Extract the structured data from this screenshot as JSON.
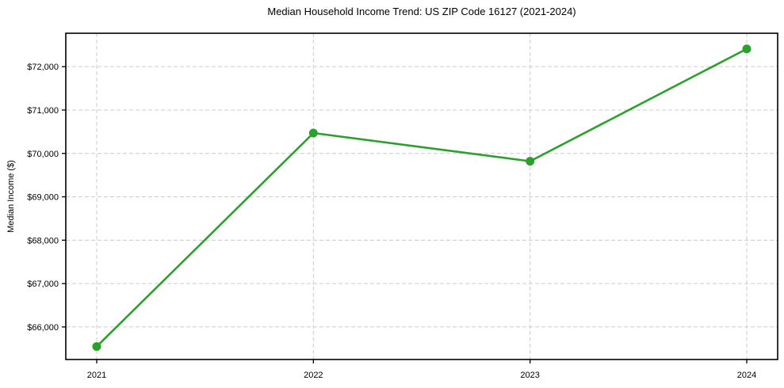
{
  "chart_data": {
    "type": "line",
    "title": "Median Household Income Trend: US ZIP Code 16127 (2021-2024)",
    "xlabel": "",
    "ylabel": "Median Income ($)",
    "categories": [
      "2021",
      "2022",
      "2023",
      "2024"
    ],
    "values": [
      65550,
      70470,
      69820,
      72410
    ],
    "ylim": [
      65250,
      72770
    ],
    "yticks": [
      66000,
      67000,
      68000,
      69000,
      70000,
      71000,
      72000
    ],
    "ytick_labels": [
      "$66,000",
      "$67,000",
      "$68,000",
      "$69,000",
      "$70,000",
      "$71,000",
      "$72,000"
    ],
    "grid": "dashed-both-axes",
    "legend": "none",
    "marker": "circle",
    "colors": {
      "line": "#2ca02c",
      "grid": "#cccccc",
      "axis": "#000000",
      "text": "#000000",
      "background": "#ffffff"
    }
  }
}
